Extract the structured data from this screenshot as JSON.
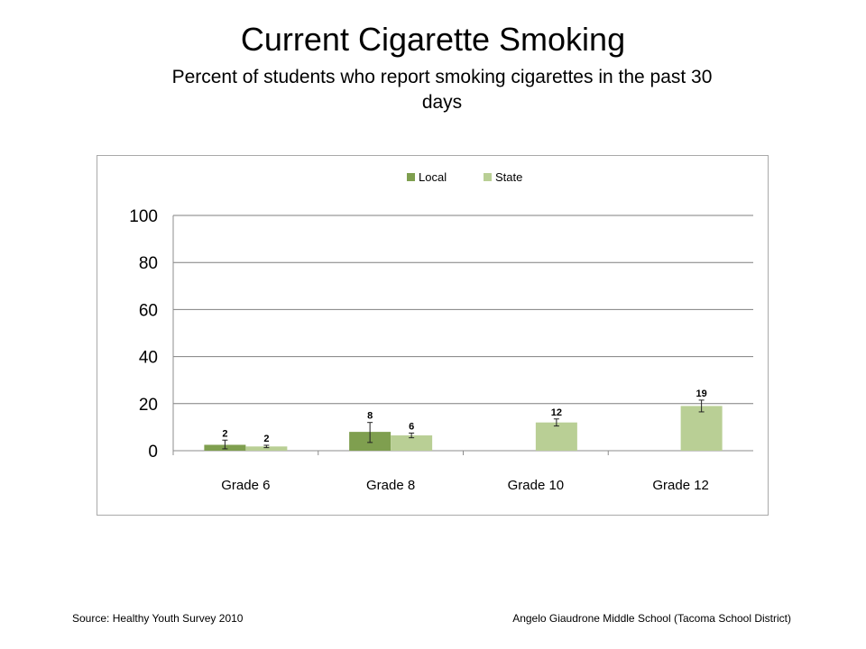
{
  "slide": {
    "title": "Current Cigarette Smoking",
    "subtitle": "Percent of students who report smoking cigarettes in the past 30 days",
    "source": "Source: Healthy Youth Survey 2010",
    "school": "Angelo Giaudrone Middle School (Tacoma School District)"
  },
  "colors": {
    "local": "#7f9f4f",
    "state": "#b9cf95",
    "gridline": "#7f7f7f",
    "frame": "#a9a9a9"
  },
  "chart_data": {
    "type": "bar",
    "title": "",
    "xlabel": "",
    "ylabel": "",
    "categories": [
      "Grade 6",
      "Grade 8",
      "Grade 10",
      "Grade 12"
    ],
    "ylim": [
      0,
      100
    ],
    "yticks": [
      0,
      20,
      40,
      60,
      80,
      100
    ],
    "grid": true,
    "legend_position": "top",
    "series": [
      {
        "name": "Local",
        "values": [
          2.5,
          8,
          null,
          null
        ],
        "labels": [
          "2",
          "8",
          "",
          ""
        ],
        "error": [
          [
            0.8,
            4.5
          ],
          [
            3.5,
            12
          ],
          null,
          null
        ]
      },
      {
        "name": "State",
        "values": [
          1.8,
          6.5,
          12,
          19
        ],
        "labels": [
          "2",
          "6",
          "12",
          "19"
        ],
        "error": [
          [
            1.3,
            2.3
          ],
          [
            5.5,
            7.5
          ],
          [
            10.5,
            13.5
          ],
          [
            16.5,
            21.5
          ]
        ]
      }
    ]
  }
}
